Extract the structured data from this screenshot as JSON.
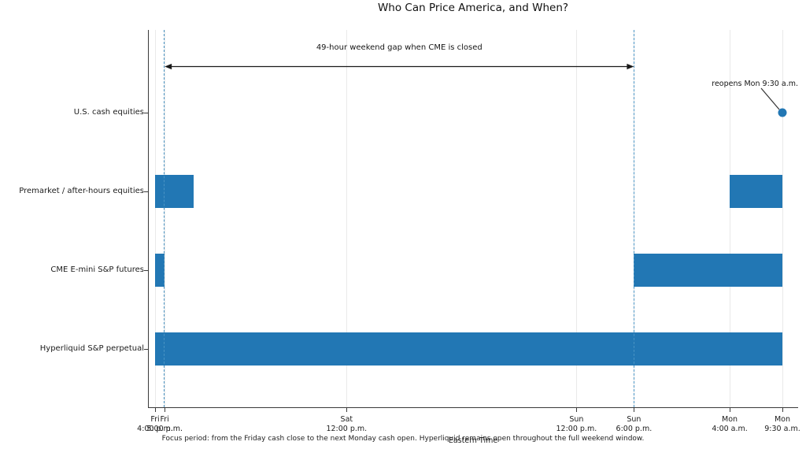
{
  "title": "Who Can Price America, and When?",
  "colors": {
    "bar": "#2277b4",
    "marker": "#2277b4",
    "dashed_line": "#4a94c4",
    "grid_line": "#e9e9e9",
    "spine": "#3a3a3a",
    "arrow": "#1a1a1a",
    "leader_line": "#333333",
    "text": "#1c1c1c"
  },
  "chart_data": {
    "type": "bar",
    "subtype": "horizontal-timeline-gantt",
    "title": "Who Can Price America, and When?",
    "xlabel": "Eastern Time",
    "ylabel": "",
    "x_unit": "hours since Friday 4:00 p.m. ET",
    "xlim": [
      -0.75,
      67.15
    ],
    "grid": true,
    "legend": false,
    "categories": [
      "U.S. cash equities",
      "Premarket / after-hours equities",
      "CME E-mini S&P futures",
      "Hyperliquid S&P perpetual"
    ],
    "series": [
      {
        "name": "U.S. cash equities",
        "spans": []
      },
      {
        "name": "Premarket / after-hours equities",
        "spans": [
          [
            0,
            4
          ],
          [
            60,
            65.5
          ]
        ]
      },
      {
        "name": "CME E-mini S&P futures",
        "spans": [
          [
            0,
            1
          ],
          [
            50,
            65.5
          ]
        ]
      },
      {
        "name": "Hyperliquid S&P perpetual",
        "spans": [
          [
            0,
            65.5
          ]
        ]
      }
    ],
    "x_ticks": [
      {
        "t": 0,
        "day": "Fri",
        "time": "4:00 p.m."
      },
      {
        "t": 1,
        "day": "Fri",
        "time": "5:00 p.m."
      },
      {
        "t": 20,
        "day": "Sat",
        "time": "12:00 p.m."
      },
      {
        "t": 44,
        "day": "Sun",
        "time": "12:00 p.m."
      },
      {
        "t": 50,
        "day": "Sun",
        "time": "6:00 p.m."
      },
      {
        "t": 60,
        "day": "Mon",
        "time": "4:00 a.m."
      },
      {
        "t": 65.5,
        "day": "Mon",
        "time": "9:30 a.m."
      }
    ],
    "dashed_vlines": [
      1,
      50
    ],
    "gap_annotation": {
      "label": "49-hour weekend gap when CME is closed",
      "from_t": 1,
      "to_t": 50
    },
    "reopen_annotation": {
      "label": "reopens Mon 9:30 a.m.",
      "t": 65.5,
      "category_index": 0
    },
    "caption": "Focus period: from the Friday cash close to the next Monday cash open. Hyperliquid remains open throughout the full weekend window."
  }
}
